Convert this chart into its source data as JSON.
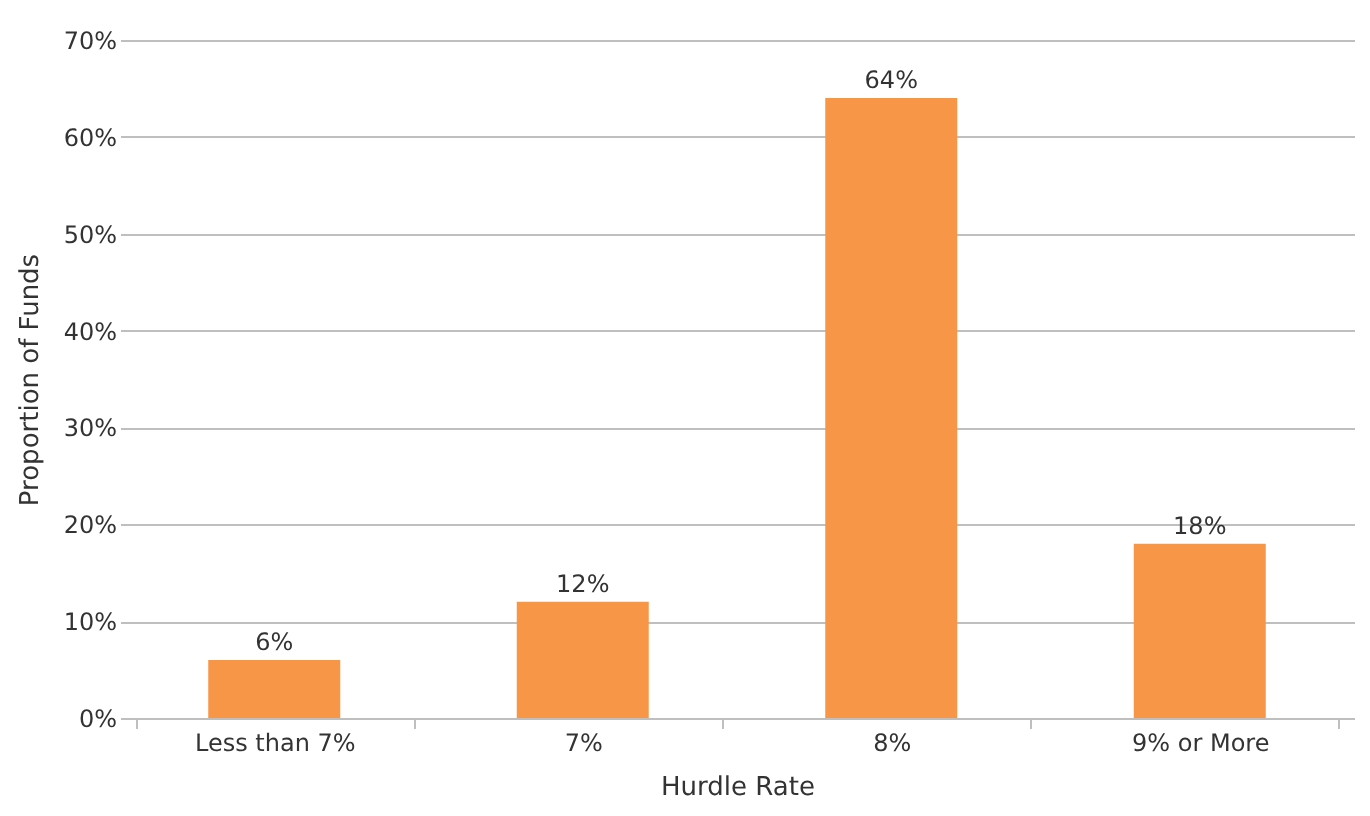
{
  "chart_data": {
    "type": "bar",
    "xlabel": "Hurdle Rate",
    "ylabel": "Proportion of Funds",
    "categories": [
      "Less than 7%",
      "7%",
      "8%",
      "9% or More"
    ],
    "values": [
      6,
      12,
      64,
      18
    ],
    "color": "#f79646",
    "value_labels": [
      "6%",
      "12%",
      "64%",
      "18%"
    ],
    "ylim": [
      0,
      70
    ],
    "yticks": [
      {
        "value": 0,
        "label": "0%"
      },
      {
        "value": 10,
        "label": "10%"
      },
      {
        "value": 20,
        "label": "20%"
      },
      {
        "value": 30,
        "label": "30%"
      },
      {
        "value": 40,
        "label": "40%"
      },
      {
        "value": 50,
        "label": "50%"
      },
      {
        "value": 60,
        "label": "60%"
      },
      {
        "value": 70,
        "label": "70%"
      }
    ],
    "grid": "y"
  }
}
